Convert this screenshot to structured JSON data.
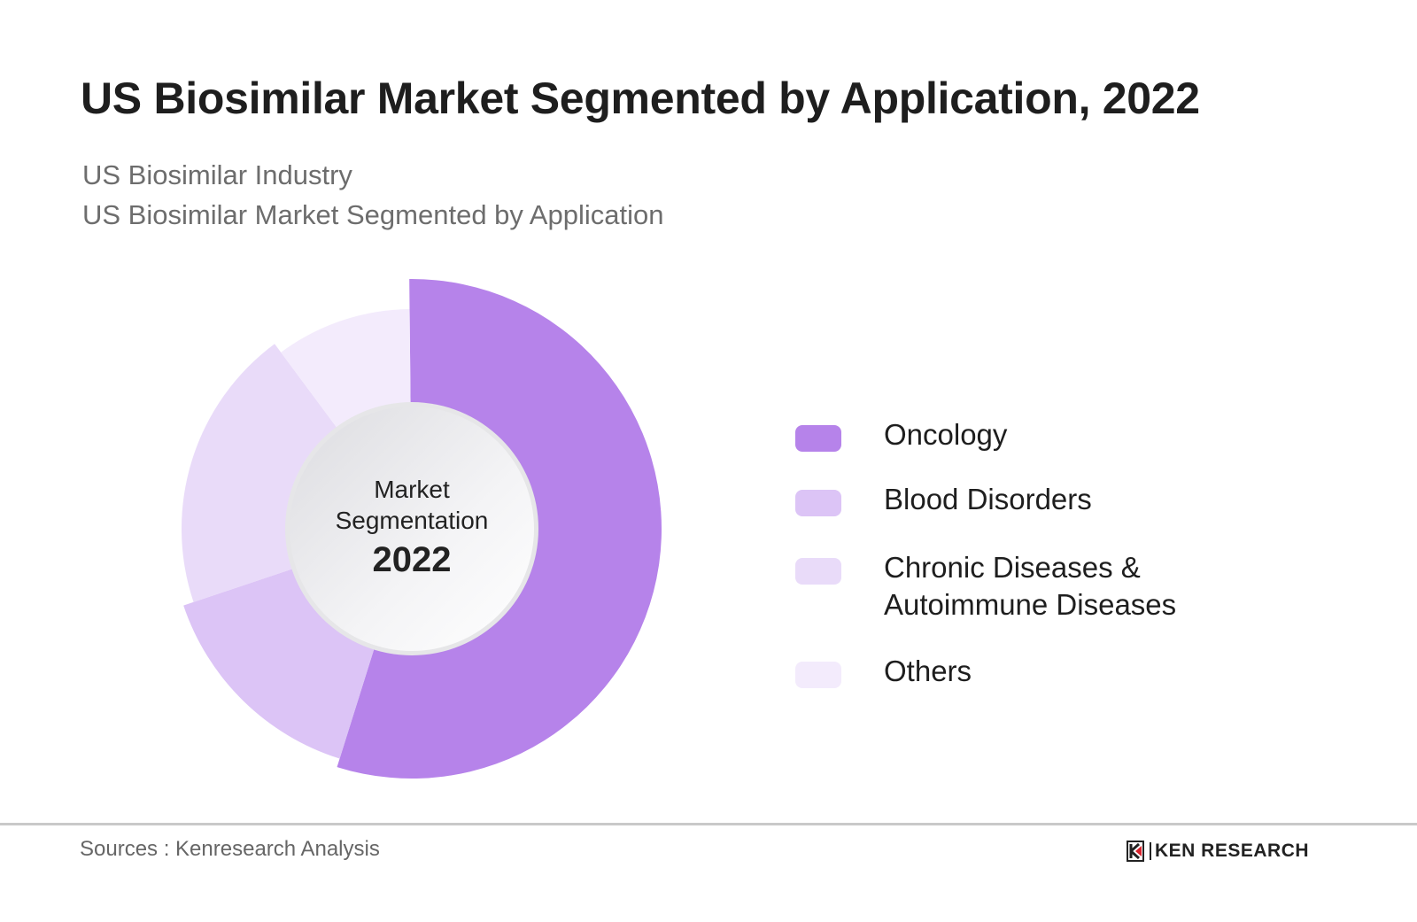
{
  "title": "US Biosimilar Market Segmented by Application, 2022",
  "subtitle_1": "US Biosimilar Industry",
  "subtitle_2": "US Biosimilar Market Segmented by Application",
  "center": {
    "line1": "Market",
    "line2": "Segmentation",
    "year": "2022"
  },
  "chart_data": {
    "type": "pie",
    "title": "US Biosimilar Market Segmented by Application, 2022",
    "variant": "donut with variable radii",
    "categories": [
      "Oncology",
      "Blood Disorders",
      "Chronic Diseases & Autoimmune Diseases",
      "Others"
    ],
    "legend_lines": [
      [
        "Oncology"
      ],
      [
        "Blood Disorders"
      ],
      [
        "Chronic Diseases &",
        "Autoimmune Diseases"
      ],
      [
        "Others"
      ]
    ],
    "values": [
      55,
      15,
      20,
      10
    ],
    "unit": "%",
    "colors": [
      "#b683ea",
      "#dcc4f6",
      "#e9dbf9",
      "#f3ebfc"
    ],
    "legend_position": "right"
  },
  "footer": {
    "source": "Sources : Kenresearch Analysis",
    "logo_text": "KEN RESEARCH"
  }
}
